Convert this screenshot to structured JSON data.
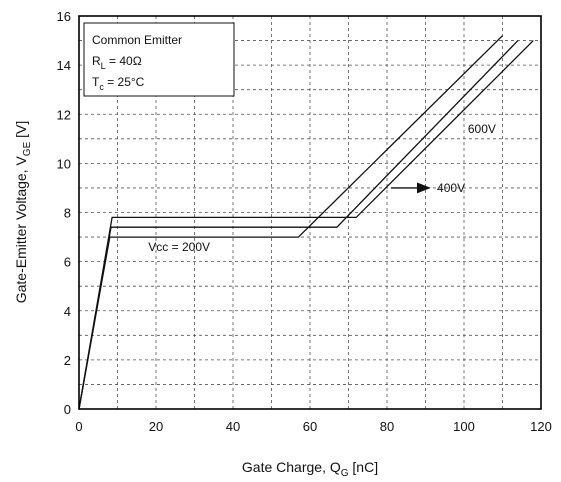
{
  "chart_data": {
    "type": "line",
    "title": "",
    "xlabel": "Gate Charge, Q",
    "xlabel_sub": "G",
    "xlabel_unit": " [nC]",
    "ylabel": "Gate-Emitter Voltage, V",
    "ylabel_sub": "GE",
    "ylabel_unit": " [V]",
    "xlim": [
      0,
      120
    ],
    "ylim": [
      0,
      16
    ],
    "xticks": [
      0,
      20,
      40,
      60,
      80,
      100,
      120
    ],
    "yticks": [
      0,
      2,
      4,
      6,
      8,
      10,
      12,
      14,
      16
    ],
    "x_grid_step": 10,
    "y_grid_step": 1,
    "grid": true,
    "series": [
      {
        "name": "Vcc = 200V",
        "points": [
          [
            0,
            0
          ],
          [
            8,
            7.0
          ],
          [
            57,
            7.0
          ],
          [
            110,
            15.2
          ]
        ]
      },
      {
        "name": "400V",
        "points": [
          [
            0,
            0
          ],
          [
            8.3,
            7.4
          ],
          [
            67,
            7.4
          ],
          [
            114,
            15.0
          ]
        ]
      },
      {
        "name": "600V",
        "points": [
          [
            0,
            0
          ],
          [
            8.6,
            7.8
          ],
          [
            72,
            7.8
          ],
          [
            118,
            15.0
          ]
        ]
      }
    ],
    "legend_box": {
      "position": "top-left",
      "title": "Common Emitter",
      "lines": [
        {
          "main": "R",
          "sub": "L",
          "rest": " = 40Ω"
        },
        {
          "main": "T",
          "sub": "c",
          "rest": " = 25°C"
        }
      ]
    },
    "annotations": [
      {
        "text": "600V",
        "x": 101,
        "y": 11.4
      },
      {
        "text": "400V",
        "x": 93,
        "y": 9.0,
        "arrow_from": [
          81,
          9.0
        ],
        "arrow_to": [
          91,
          9.0
        ]
      },
      {
        "text": "Vcc = 200V",
        "x": 18,
        "y": 6.6
      }
    ]
  }
}
